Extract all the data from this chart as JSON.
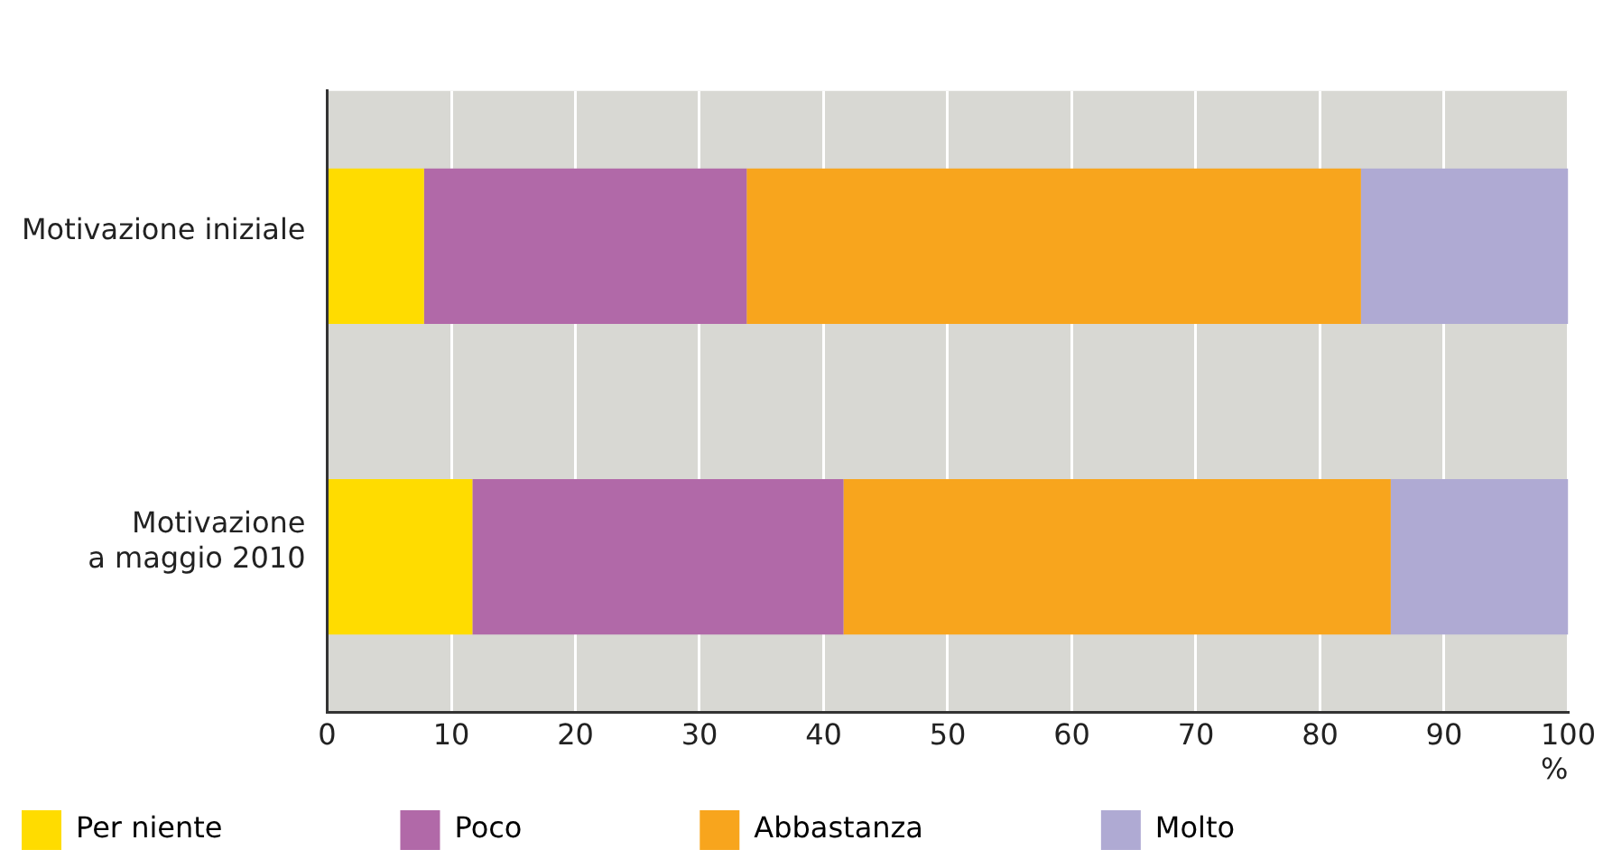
{
  "chart_data": {
    "type": "bar",
    "orientation": "horizontal",
    "stacked": true,
    "xlabel": "%",
    "categories": [
      "Motivazione iniziale",
      "Motivazione\na maggio 2010"
    ],
    "series": [
      {
        "name": "Per niente",
        "color": "#ffdc00",
        "values": [
          7.8,
          11.7
        ]
      },
      {
        "name": "Poco",
        "color": "#b169a8",
        "values": [
          26.0,
          29.9
        ]
      },
      {
        "name": "Abbastanza",
        "color": "#f8a51d",
        "values": [
          49.5,
          44.1
        ]
      },
      {
        "name": "Molto",
        "color": "#afaad3",
        "values": [
          16.7,
          14.3
        ]
      }
    ],
    "xlim": [
      0,
      100
    ],
    "xticks": [
      0,
      10,
      20,
      30,
      40,
      50,
      60,
      70,
      80,
      90,
      100
    ],
    "grid": "x",
    "legend": "bottom"
  }
}
